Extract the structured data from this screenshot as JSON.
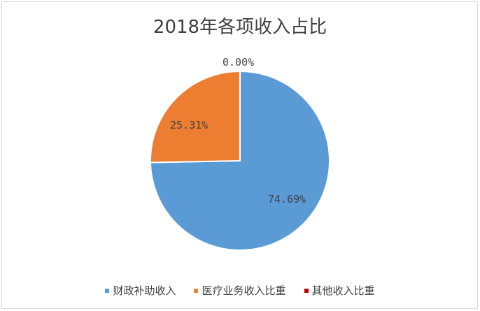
{
  "chart_data": {
    "type": "pie",
    "title": "2018年各项收入占比",
    "categories": [
      "财政补助收入",
      "医疗业务收入比重",
      "其他收入比重"
    ],
    "values": [
      74.69,
      25.31,
      0.0
    ],
    "labels": [
      "74.69%",
      "25.31%",
      "0.00%"
    ],
    "colors": [
      "#5b9bd5",
      "#ed7d31",
      "#c00000"
    ],
    "legend_position": "bottom"
  },
  "legend": [
    {
      "label": "财政补助收入",
      "color": "#5b9bd5"
    },
    {
      "label": "医疗业务收入比重",
      "color": "#ed7d31"
    },
    {
      "label": "其他收入比重",
      "color": "#c00000"
    }
  ]
}
